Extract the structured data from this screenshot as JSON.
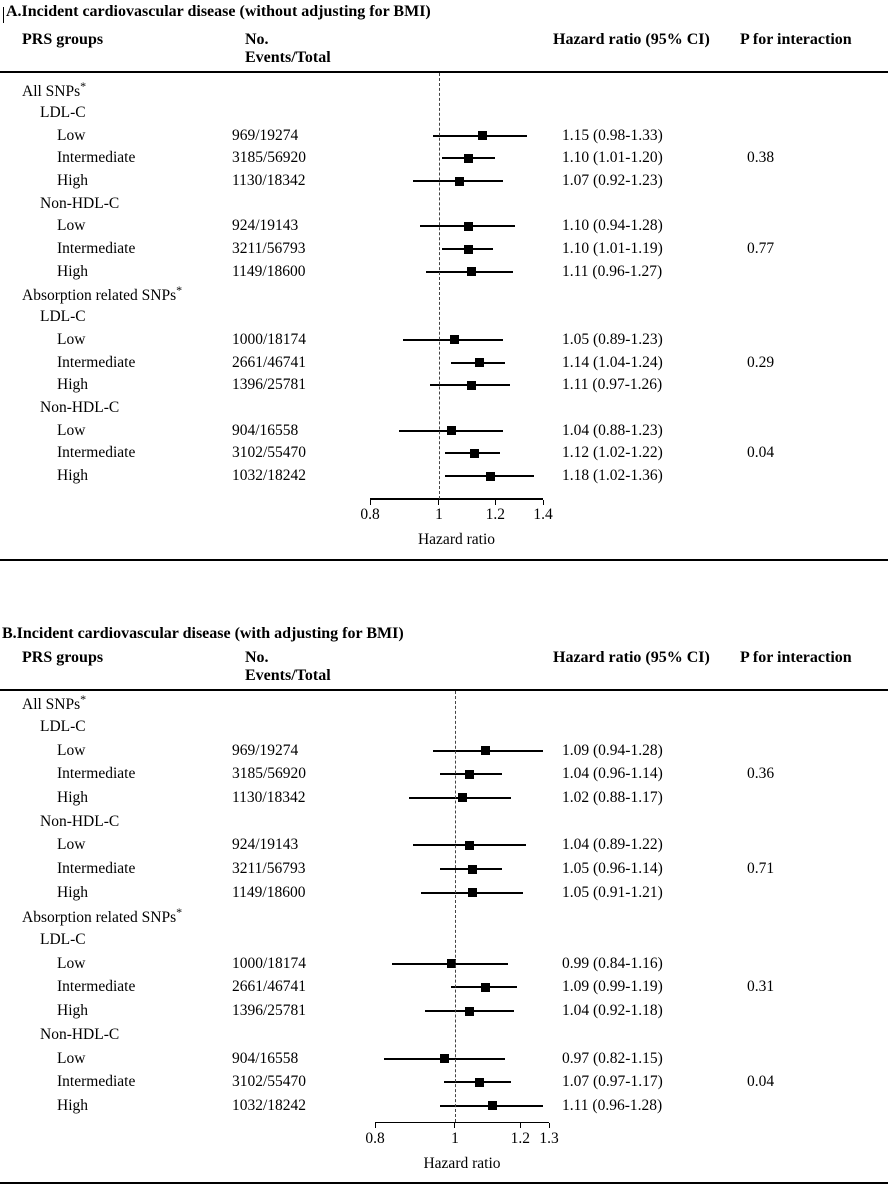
{
  "chart_data": [
    {
      "type": "forest",
      "panel": "A",
      "title": "A.Incident cardiovascular disease (without adjusting for BMI)",
      "columns": [
        "PRS groups",
        "No. Events/Total",
        "Hazard ratio (95% CI)",
        "P for interaction"
      ],
      "xlabel": "Hazard ratio",
      "xscale": "log",
      "xlim": [
        0.8,
        1.4
      ],
      "xticks": [
        0.8,
        1,
        1.2,
        1.4
      ],
      "xtick_labels": [
        "0.8",
        "1",
        "1.2",
        "1.4"
      ],
      "ref_line": 1,
      "rows": [
        {
          "type": "group",
          "label": "All SNPs",
          "sup": "*"
        },
        {
          "type": "subgroup",
          "label": "LDL-C"
        },
        {
          "type": "data",
          "label": "Low",
          "events": "969/19274",
          "hr": 1.15,
          "ci_low": 0.98,
          "ci_high": 1.33,
          "hr_text": "1.15 (0.98-1.33)",
          "p": ""
        },
        {
          "type": "data",
          "label": "Intermediate",
          "events": "3185/56920",
          "hr": 1.1,
          "ci_low": 1.01,
          "ci_high": 1.2,
          "hr_text": "1.10 (1.01-1.20)",
          "p": "0.38"
        },
        {
          "type": "data",
          "label": "High",
          "events": "1130/18342",
          "hr": 1.07,
          "ci_low": 0.92,
          "ci_high": 1.23,
          "hr_text": "1.07 (0.92-1.23)",
          "p": ""
        },
        {
          "type": "subgroup",
          "label": "Non-HDL-C"
        },
        {
          "type": "data",
          "label": "Low",
          "events": "924/19143",
          "hr": 1.1,
          "ci_low": 0.94,
          "ci_high": 1.28,
          "hr_text": "1.10 (0.94-1.28)",
          "p": ""
        },
        {
          "type": "data",
          "label": "Intermediate",
          "events": "3211/56793",
          "hr": 1.1,
          "ci_low": 1.01,
          "ci_high": 1.19,
          "hr_text": "1.10 (1.01-1.19)",
          "p": "0.77"
        },
        {
          "type": "data",
          "label": "High",
          "events": "1149/18600",
          "hr": 1.11,
          "ci_low": 0.96,
          "ci_high": 1.27,
          "hr_text": "1.11 (0.96-1.27)",
          "p": ""
        },
        {
          "type": "group",
          "label": "Absorption related SNPs",
          "sup": "*"
        },
        {
          "type": "subgroup",
          "label": "LDL-C"
        },
        {
          "type": "data",
          "label": "Low",
          "events": "1000/18174",
          "hr": 1.05,
          "ci_low": 0.89,
          "ci_high": 1.23,
          "hr_text": "1.05 (0.89-1.23)",
          "p": ""
        },
        {
          "type": "data",
          "label": "Intermediate",
          "events": "2661/46741",
          "hr": 1.14,
          "ci_low": 1.04,
          "ci_high": 1.24,
          "hr_text": "1.14 (1.04-1.24)",
          "p": "0.29"
        },
        {
          "type": "data",
          "label": "High",
          "events": "1396/25781",
          "hr": 1.11,
          "ci_low": 0.97,
          "ci_high": 1.26,
          "hr_text": "1.11 (0.97-1.26)",
          "p": ""
        },
        {
          "type": "subgroup",
          "label": "Non-HDL-C"
        },
        {
          "type": "data",
          "label": "Low",
          "events": "904/16558",
          "hr": 1.04,
          "ci_low": 0.88,
          "ci_high": 1.23,
          "hr_text": "1.04 (0.88-1.23)",
          "p": ""
        },
        {
          "type": "data",
          "label": "Intermediate",
          "events": "3102/55470",
          "hr": 1.12,
          "ci_low": 1.02,
          "ci_high": 1.22,
          "hr_text": "1.12 (1.02-1.22)",
          "p": "0.04"
        },
        {
          "type": "data",
          "label": "High",
          "events": "1032/18242",
          "hr": 1.18,
          "ci_low": 1.02,
          "ci_high": 1.36,
          "hr_text": "1.18 (1.02-1.36)",
          "p": ""
        }
      ]
    },
    {
      "type": "forest",
      "panel": "B",
      "title": "B.Incident cardiovascular disease (with adjusting for BMI)",
      "columns": [
        "PRS groups",
        "No. Events/Total",
        "Hazard ratio (95% CI)",
        "P for interaction"
      ],
      "xlabel": "Hazard ratio",
      "xscale": "log",
      "xlim": [
        0.8,
        1.3
      ],
      "xticks": [
        0.8,
        1,
        1.2,
        1.3
      ],
      "xtick_labels": [
        "0.8",
        "1",
        "1.2",
        "1.3"
      ],
      "ref_line": 1,
      "rows": [
        {
          "type": "group",
          "label": "All SNPs",
          "sup": "*"
        },
        {
          "type": "subgroup",
          "label": "LDL-C"
        },
        {
          "type": "data",
          "label": "Low",
          "events": "969/19274",
          "hr": 1.09,
          "ci_low": 0.94,
          "ci_high": 1.28,
          "hr_text": "1.09 (0.94-1.28)",
          "p": ""
        },
        {
          "type": "data",
          "label": "Intermediate",
          "events": "3185/56920",
          "hr": 1.04,
          "ci_low": 0.96,
          "ci_high": 1.14,
          "hr_text": "1.04 (0.96-1.14)",
          "p": "0.36"
        },
        {
          "type": "data",
          "label": "High",
          "events": "1130/18342",
          "hr": 1.02,
          "ci_low": 0.88,
          "ci_high": 1.17,
          "hr_text": "1.02 (0.88-1.17)",
          "p": ""
        },
        {
          "type": "subgroup",
          "label": "Non-HDL-C"
        },
        {
          "type": "data",
          "label": "Low",
          "events": "924/19143",
          "hr": 1.04,
          "ci_low": 0.89,
          "ci_high": 1.22,
          "hr_text": "1.04 (0.89-1.22)",
          "p": ""
        },
        {
          "type": "data",
          "label": "Intermediate",
          "events": "3211/56793",
          "hr": 1.05,
          "ci_low": 0.96,
          "ci_high": 1.14,
          "hr_text": "1.05 (0.96-1.14)",
          "p": "0.71"
        },
        {
          "type": "data",
          "label": "High",
          "events": "1149/18600",
          "hr": 1.05,
          "ci_low": 0.91,
          "ci_high": 1.21,
          "hr_text": "1.05 (0.91-1.21)",
          "p": ""
        },
        {
          "type": "group",
          "label": "Absorption related SNPs",
          "sup": "*"
        },
        {
          "type": "subgroup",
          "label": "LDL-C"
        },
        {
          "type": "data",
          "label": "Low",
          "events": "1000/18174",
          "hr": 0.99,
          "ci_low": 0.84,
          "ci_high": 1.16,
          "hr_text": "0.99 (0.84-1.16)",
          "p": ""
        },
        {
          "type": "data",
          "label": "Intermediate",
          "events": "2661/46741",
          "hr": 1.09,
          "ci_low": 0.99,
          "ci_high": 1.19,
          "hr_text": "1.09 (0.99-1.19)",
          "p": "0.31"
        },
        {
          "type": "data",
          "label": "High",
          "events": "1396/25781",
          "hr": 1.04,
          "ci_low": 0.92,
          "ci_high": 1.18,
          "hr_text": "1.04 (0.92-1.18)",
          "p": ""
        },
        {
          "type": "subgroup",
          "label": "Non-HDL-C"
        },
        {
          "type": "data",
          "label": "Low",
          "events": "904/16558",
          "hr": 0.97,
          "ci_low": 0.82,
          "ci_high": 1.15,
          "hr_text": "0.97 (0.82-1.15)",
          "p": ""
        },
        {
          "type": "data",
          "label": "Intermediate",
          "events": "3102/55470",
          "hr": 1.07,
          "ci_low": 0.97,
          "ci_high": 1.17,
          "hr_text": "1.07 (0.97-1.17)",
          "p": "0.04"
        },
        {
          "type": "data",
          "label": "High",
          "events": "1032/18242",
          "hr": 1.11,
          "ci_low": 0.96,
          "ci_high": 1.28,
          "hr_text": "1.11 (0.96-1.28)",
          "p": ""
        }
      ]
    }
  ]
}
